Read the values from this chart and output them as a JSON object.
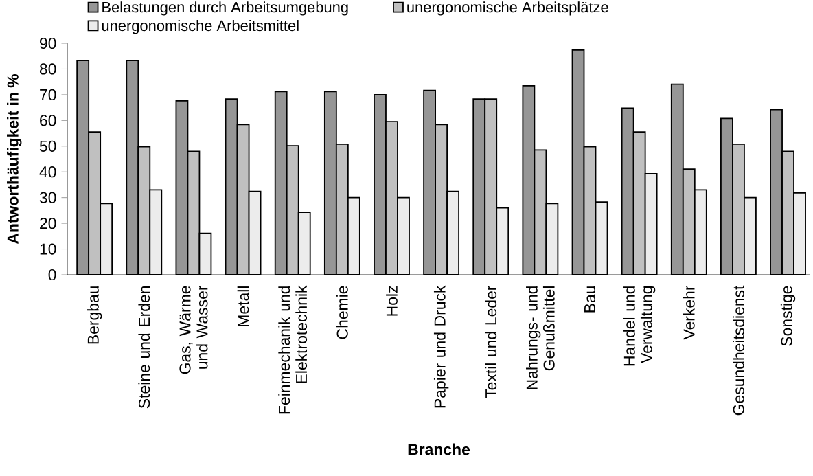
{
  "chart_data": {
    "type": "bar",
    "xlabel": "Branche",
    "ylabel": "Antworthäufigkeit in %",
    "categories": [
      "Bergbau",
      "Steine und Erden",
      "Gas, Wärme und Wasser",
      "Metall",
      "Feinmechanik und Elektrotechnik",
      "Chemie",
      "Holz",
      "Papier und Druck",
      "Textil und Leder",
      "Nahrungs- und Genußmittel",
      "Bau",
      "Handel und Verwaltung",
      "Verkehr",
      "Gesundheitsdienst",
      "Sonstige"
    ],
    "series": [
      {
        "name": "Belastungen durch Arbeitsumgebung",
        "color": "#969696",
        "values": [
          83.3,
          83.3,
          67.6,
          68.3,
          71.2,
          71.2,
          70.0,
          71.7,
          68.3,
          73.5,
          87.4,
          64.8,
          74.1,
          60.8,
          64.2
        ]
      },
      {
        "name": "unergonomische Arbeitsplätze",
        "color": "#c0c0c0",
        "values": [
          55.5,
          49.8,
          48.0,
          58.4,
          50.2,
          50.8,
          59.5,
          58.4,
          68.3,
          48.5,
          49.8,
          55.5,
          41.1,
          50.8,
          48.0
        ]
      },
      {
        "name": "unergonomische Arbeitsmittel",
        "color": "#ececec",
        "values": [
          27.7,
          33.0,
          16.1,
          32.4,
          24.3,
          30.0,
          30.0,
          32.4,
          26.0,
          27.7,
          28.3,
          39.3,
          33.0,
          30.0,
          31.8
        ]
      }
    ],
    "ylim": [
      0,
      90
    ],
    "yticks": [
      0,
      10,
      20,
      30,
      40,
      50,
      60,
      70,
      80,
      90
    ],
    "grid": false,
    "legend": "top"
  }
}
